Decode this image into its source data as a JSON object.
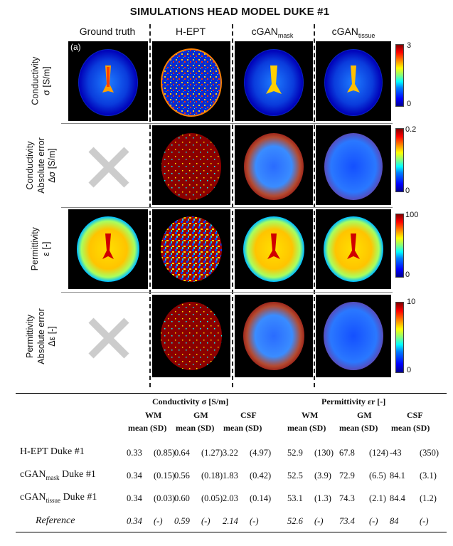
{
  "title": "SIMULATIONS HEAD MODEL DUKE #1",
  "columns": {
    "ground_truth": "Ground truth",
    "hept": "H-EPT",
    "cgan_mask": {
      "base": "cGAN",
      "sub": "mask"
    },
    "cgan_tissue": {
      "base": "cGAN",
      "sub": "tissue"
    }
  },
  "rows": [
    {
      "line1": "Conductivity",
      "line2": "σ [S/m]"
    },
    {
      "line1": "Conductivity",
      "line2": "Absolute error",
      "line3": "Δσ [S/m]"
    },
    {
      "line1": "Permittivity",
      "line2": "ε [-]"
    },
    {
      "line1": "Permittivity",
      "line2": "Absolute error",
      "line3": "Δε [-]"
    }
  ],
  "panel_tag": "(a)",
  "colorbars": [
    {
      "max": "3",
      "min": "0"
    },
    {
      "max": "0.2",
      "min": "0"
    },
    {
      "max": "100",
      "min": "0"
    },
    {
      "max": "10",
      "min": "0"
    }
  ],
  "colors": {
    "jet_blue": "#0000c8",
    "jet_red": "#8b0000",
    "cross": "#cccccc"
  },
  "table": {
    "group_conductivity": "Conductivity σ [S/m]",
    "group_permittivity": "Permittivity εr [-]",
    "tissues": [
      "WM",
      "GM",
      "CSF",
      "WM",
      "GM",
      "CSF"
    ],
    "stat_header": "mean (SD)",
    "rows": [
      {
        "label": "H-EPT Duke #1",
        "sub": "",
        "values": [
          "0.33",
          "(0.85)",
          "0.64",
          "(1.27)",
          "3.22",
          "(4.97)",
          "52.9",
          "(130)",
          "67.8",
          "(124)",
          "-43",
          "(350)"
        ]
      },
      {
        "label": "cGAN",
        "sub": "mask",
        "suffix": " Duke #1",
        "values": [
          "0.34",
          "(0.15)",
          "0.56",
          "(0.18)",
          "1.83",
          "(0.42)",
          "52.5",
          "(3.9)",
          "72.9",
          "(6.5)",
          "84.1",
          "(3.1)"
        ]
      },
      {
        "label": "cGAN",
        "sub": "tissue",
        "suffix": " Duke #1",
        "values": [
          "0.34",
          "(0.03)",
          "0.60",
          "(0.05)",
          "2.03",
          "(0.14)",
          "53.1",
          "(1.3)",
          "74.3",
          "(2.1)",
          "84.4",
          "(1.2)"
        ]
      },
      {
        "label": "Reference",
        "sub": "",
        "values": [
          "0.34",
          "(-)",
          "0.59",
          "(-)",
          "2.14",
          "(-)",
          "52.6",
          "(-)",
          "73.4",
          "(-)",
          "84",
          "(-)"
        ]
      }
    ]
  }
}
